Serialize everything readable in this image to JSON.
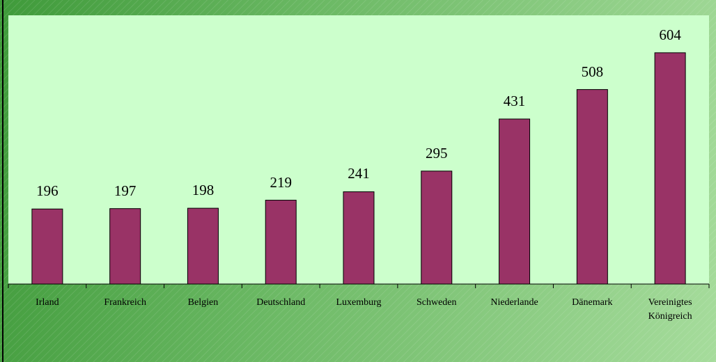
{
  "chart_data": {
    "type": "bar",
    "categories": [
      "Irland",
      "Frankreich",
      "Belgien",
      "Deutschland",
      "Luxemburg",
      "Schweden",
      "Niederlande",
      "Dänemark",
      "Vereinigtes\nKönigreich"
    ],
    "values": [
      196,
      197,
      198,
      219,
      241,
      295,
      431,
      508,
      604
    ],
    "color": "#993366"
  }
}
